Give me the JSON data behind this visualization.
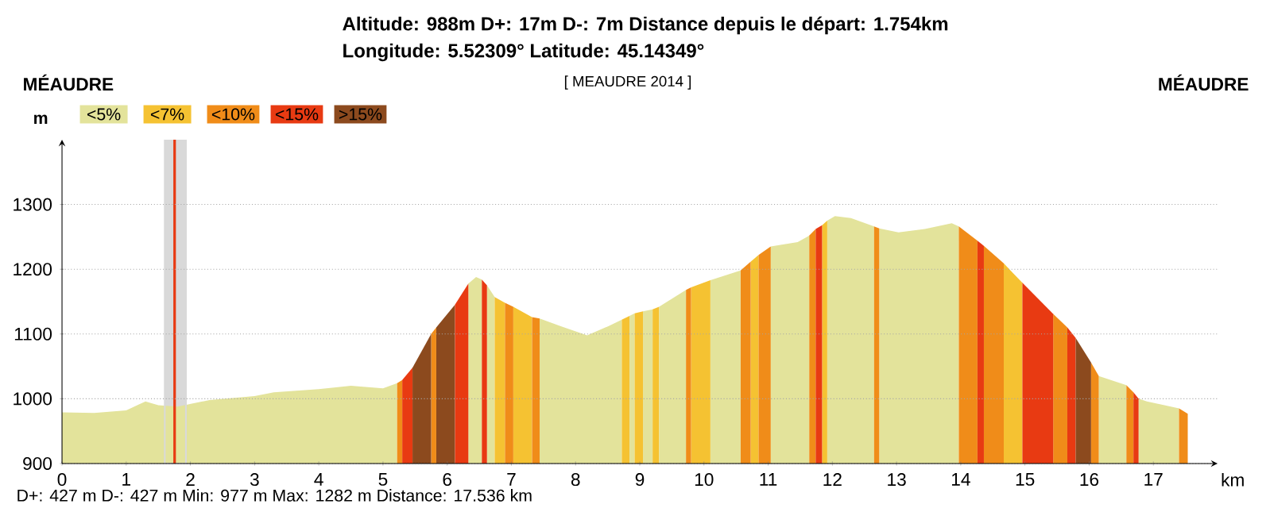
{
  "chart_data": {
    "type": "area",
    "title": "[ MEAUDRE 2014 ]",
    "xlabel": "km",
    "ylabel": "m",
    "annotations": [
      "Altitude: 988m   D+: 17m   D-: 7m   Distance depuis le départ: 1.754km",
      "Longitude: 5.52309°   Latitude: 45.14349°",
      "MÉAUDRE",
      "MÉAUDRE",
      "D+: 427 m    D-: 427 m    Min: 977 m    Max: 1282 m    Distance: 17.536 km"
    ],
    "xlim": [
      0,
      18
    ],
    "ylim": [
      900,
      1400
    ],
    "xticks": [
      0,
      1,
      2,
      3,
      4,
      5,
      6,
      7,
      8,
      9,
      10,
      11,
      12,
      13,
      14,
      15,
      16,
      17
    ],
    "yticks": [
      900,
      1000,
      1100,
      1200,
      1300
    ],
    "grid": "y",
    "legend": "top left",
    "ref_lines": [
      {
        "axis": "x",
        "value": 1.754,
        "color": "#e83a12"
      }
    ],
    "bands": [
      {
        "axis": "x",
        "from": 1.6,
        "to": 1.93,
        "color": "#d9d9d9"
      }
    ],
    "series": [
      {
        "name": "<5%",
        "color": "#e3e39b",
        "x": [
          0,
          0.5,
          1,
          1.3,
          1.5,
          1.8,
          2.3,
          3,
          3.3,
          4,
          4.5,
          5,
          5.22,
          null,
          6.33,
          6.45,
          6.54,
          null,
          6.62,
          6.74,
          null,
          7.44,
          7.77,
          8.18,
          8.51,
          8.72,
          null,
          8.84,
          8.92,
          null,
          9.05,
          9.2,
          null,
          9.3,
          9.72,
          null,
          10.1,
          10.57,
          null,
          11.04,
          11.46,
          11.64,
          null,
          11.92,
          12.04,
          12.29,
          12.65,
          null,
          12.73,
          13.03,
          13.44,
          13.86,
          13.97,
          null,
          16.15,
          16.58,
          null,
          16.77,
          16.9,
          17.4
        ],
        "values": [
          979,
          978,
          982,
          996,
          990,
          988,
          998,
          1004,
          1010,
          1015,
          1020,
          1016,
          1024,
          null,
          1178,
          1188,
          1184,
          null,
          1175,
          1157,
          null,
          1124,
          1112,
          1098,
          1112,
          1122,
          null,
          1128,
          1132,
          null,
          1135,
          1138,
          null,
          1142,
          1168,
          null,
          1183,
          1198,
          null,
          1235,
          1242,
          1252,
          null,
          1275,
          1282,
          1279,
          1266,
          null,
          1263,
          1257,
          1262,
          1271,
          1266,
          null,
          1035,
          1021,
          null,
          1000,
          996,
          985
        ]
      },
      {
        "name": "<7%",
        "color": "#f5c232",
        "x": [
          6.74,
          6.9,
          null,
          7.03,
          7.32,
          null,
          8.72,
          8.84,
          null,
          8.92,
          9.05,
          null,
          9.2,
          9.3,
          null,
          9.8,
          10.1,
          null,
          10.73,
          10.85,
          null,
          11.84,
          11.92,
          null,
          14.67,
          14.96
        ],
        "values": [
          1157,
          1148,
          null,
          1142,
          1126,
          null,
          1122,
          1128,
          null,
          1132,
          1135,
          null,
          1138,
          1142,
          null,
          1172,
          1183,
          null,
          1212,
          1222,
          null,
          1268,
          1275,
          null,
          1209,
          1179
        ]
      },
      {
        "name": "<10%",
        "color": "#f08c19",
        "x": [
          5.22,
          5.3,
          null,
          5.75,
          5.83,
          null,
          6.9,
          7.03,
          null,
          7.32,
          7.44,
          null,
          9.72,
          9.8,
          null,
          10.57,
          10.73,
          null,
          10.85,
          11.04,
          null,
          11.64,
          11.74,
          null,
          12.65,
          12.73,
          null,
          13.97,
          14.26,
          null,
          14.36,
          14.67,
          null,
          15.44,
          15.66,
          null,
          16.03,
          16.15,
          null,
          16.58,
          16.69,
          null,
          17.4,
          17.536
        ],
        "values": [
          1024,
          1029,
          null,
          1100,
          1110,
          null,
          1148,
          1142,
          null,
          1126,
          1124,
          null,
          1168,
          1172,
          null,
          1198,
          1212,
          null,
          1222,
          1235,
          null,
          1252,
          1262,
          null,
          1266,
          1263,
          null,
          1266,
          1244,
          null,
          1236,
          1209,
          null,
          1131,
          1110,
          null,
          1056,
          1035,
          null,
          1021,
          1010,
          null,
          985,
          977
        ]
      },
      {
        "name": "<15%",
        "color": "#e83a12",
        "x": [
          5.3,
          5.46,
          null,
          6.12,
          6.33,
          null,
          6.54,
          6.62,
          null,
          11.74,
          11.84,
          null,
          14.26,
          14.36,
          null,
          14.96,
          15.44,
          null,
          15.66,
          15.79,
          null,
          16.69,
          16.77
        ],
        "values": [
          1029,
          1048,
          null,
          1145,
          1178,
          null,
          1184,
          1175,
          null,
          1262,
          1268,
          null,
          1244,
          1236,
          null,
          1179,
          1131,
          null,
          1110,
          1094,
          null,
          1010,
          1000
        ]
      },
      {
        "name": ">15%",
        "color": "#8c4a1e",
        "x": [
          5.46,
          5.75,
          null,
          5.83,
          6.12,
          null,
          15.79,
          16.03
        ],
        "values": [
          1048,
          1100,
          null,
          1110,
          1145,
          null,
          1094,
          1056
        ]
      }
    ]
  }
}
